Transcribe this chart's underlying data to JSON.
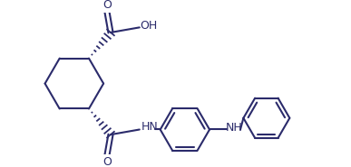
{
  "bg_color": "#ffffff",
  "line_color": "#2b2b6b",
  "line_width": 1.5,
  "fig_width": 3.87,
  "fig_height": 1.85,
  "dpi": 100,
  "xlim": [
    0,
    387
  ],
  "ylim": [
    0,
    185
  ]
}
